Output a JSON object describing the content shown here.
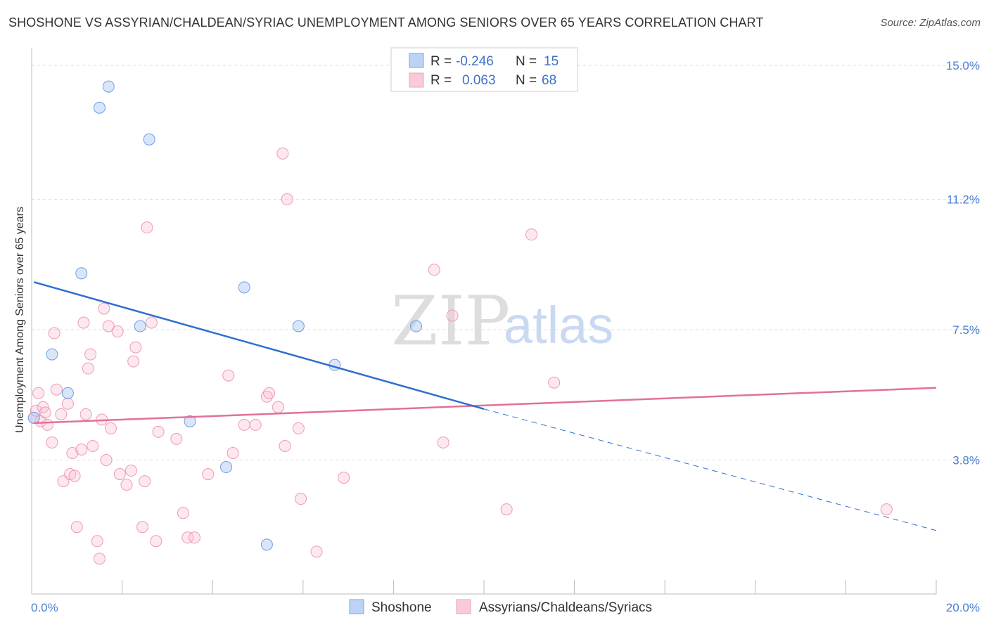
{
  "title": "SHOSHONE VS ASSYRIAN/CHALDEAN/SYRIAC UNEMPLOYMENT AMONG SENIORS OVER 65 YEARS CORRELATION CHART",
  "source": "Source: ZipAtlas.com",
  "watermark": {
    "zip": "ZIP",
    "atlas": "atlas"
  },
  "legend": {
    "r_label": "R =",
    "n_label": "N =",
    "rows": [
      {
        "name": "Shoshone",
        "r": "-0.246",
        "n": "15"
      },
      {
        "name": "Assyrians/Chaldeans/Syriacs",
        "r": "0.063",
        "n": "68"
      }
    ]
  },
  "chart_data": {
    "type": "scatter",
    "title": "SHOSHONE VS ASSYRIAN/CHALDEAN/SYRIAC UNEMPLOYMENT AMONG SENIORS OVER 65 YEARS CORRELATION CHART",
    "xlabel": "",
    "ylabel": "Unemployment Among Seniors over 65 years",
    "xlim": [
      0,
      20
    ],
    "ylim": [
      0,
      15.3
    ],
    "x_tick_labels": [
      "0.0%",
      "20.0%"
    ],
    "y_ticks": [
      3.8,
      7.5,
      11.2,
      15.0
    ],
    "y_tick_labels": [
      "3.8%",
      "7.5%",
      "11.2%",
      "15.0%"
    ],
    "colors": {
      "shoshone": "#7aa6e8",
      "assyrian": "#f2a0b8",
      "shoshone_line": "#2f6fd0",
      "assyrian_line": "#e2709a"
    },
    "series": [
      {
        "name": "Shoshone",
        "points": [
          [
            0.05,
            5.0
          ],
          [
            1.7,
            14.4
          ],
          [
            1.5,
            13.8
          ],
          [
            2.6,
            12.9
          ],
          [
            1.1,
            9.1
          ],
          [
            4.7,
            8.7
          ],
          [
            2.4,
            7.6
          ],
          [
            5.9,
            7.6
          ],
          [
            8.5,
            7.6
          ],
          [
            0.45,
            6.8
          ],
          [
            6.7,
            6.5
          ],
          [
            0.8,
            5.7
          ],
          [
            3.5,
            4.9
          ],
          [
            4.3,
            3.6
          ],
          [
            5.2,
            1.4
          ]
        ],
        "trend": {
          "x0": 0.05,
          "y0": 8.85,
          "x1": 10.0,
          "y1": 5.25,
          "dash_x1": 20.0,
          "dash_y1": 1.8
        }
      },
      {
        "name": "Assyrians/Chaldeans/Syriacs",
        "points": [
          [
            0.05,
            5.0
          ],
          [
            0.1,
            5.2
          ],
          [
            0.15,
            5.7
          ],
          [
            0.2,
            4.9
          ],
          [
            0.25,
            5.3
          ],
          [
            0.3,
            5.15
          ],
          [
            0.35,
            4.8
          ],
          [
            0.45,
            4.3
          ],
          [
            0.5,
            7.4
          ],
          [
            0.55,
            5.8
          ],
          [
            0.65,
            5.1
          ],
          [
            0.7,
            3.2
          ],
          [
            0.8,
            5.4
          ],
          [
            0.85,
            3.4
          ],
          [
            0.9,
            4.0
          ],
          [
            0.95,
            3.35
          ],
          [
            1.0,
            1.9
          ],
          [
            1.1,
            4.1
          ],
          [
            1.15,
            7.7
          ],
          [
            1.2,
            5.1
          ],
          [
            1.25,
            6.4
          ],
          [
            1.3,
            6.8
          ],
          [
            1.35,
            4.2
          ],
          [
            1.45,
            1.5
          ],
          [
            1.5,
            1.0
          ],
          [
            1.55,
            4.95
          ],
          [
            1.6,
            8.1
          ],
          [
            1.65,
            3.8
          ],
          [
            1.7,
            7.6
          ],
          [
            1.75,
            4.7
          ],
          [
            1.9,
            7.45
          ],
          [
            1.95,
            3.4
          ],
          [
            2.1,
            3.1
          ],
          [
            2.2,
            3.5
          ],
          [
            2.25,
            6.6
          ],
          [
            2.3,
            7.0
          ],
          [
            2.45,
            1.9
          ],
          [
            2.5,
            3.2
          ],
          [
            2.55,
            10.4
          ],
          [
            2.65,
            7.7
          ],
          [
            2.75,
            1.5
          ],
          [
            2.8,
            4.6
          ],
          [
            3.2,
            4.4
          ],
          [
            3.35,
            2.3
          ],
          [
            3.45,
            1.6
          ],
          [
            3.6,
            1.6
          ],
          [
            3.9,
            3.4
          ],
          [
            4.35,
            6.2
          ],
          [
            4.45,
            4.0
          ],
          [
            4.7,
            4.8
          ],
          [
            4.95,
            4.8
          ],
          [
            5.2,
            5.6
          ],
          [
            5.25,
            5.7
          ],
          [
            5.45,
            5.3
          ],
          [
            5.55,
            12.5
          ],
          [
            5.6,
            4.2
          ],
          [
            5.65,
            11.2
          ],
          [
            5.9,
            4.7
          ],
          [
            5.95,
            2.7
          ],
          [
            6.3,
            1.2
          ],
          [
            6.9,
            3.3
          ],
          [
            8.9,
            9.2
          ],
          [
            9.1,
            4.3
          ],
          [
            9.3,
            7.9
          ],
          [
            10.5,
            2.4
          ],
          [
            11.05,
            10.2
          ],
          [
            11.55,
            6.0
          ],
          [
            18.9,
            2.4
          ]
        ],
        "trend": {
          "x0": 0.05,
          "y0": 4.85,
          "x1": 20.0,
          "y1": 5.85
        }
      }
    ]
  }
}
